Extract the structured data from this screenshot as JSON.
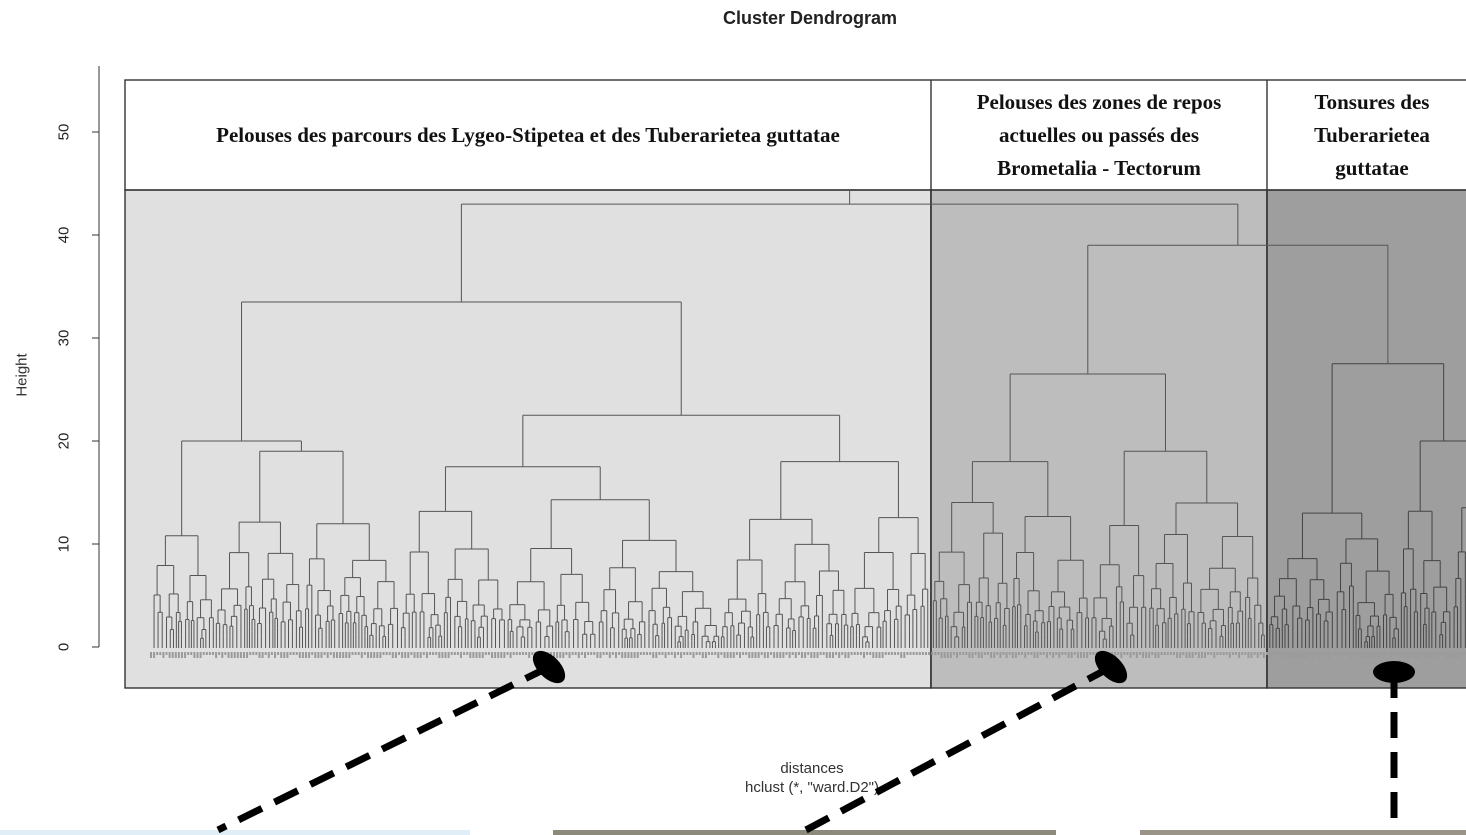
{
  "chart_data": {
    "type": "dendrogram",
    "title": "Cluster Dendrogram",
    "xlabel": "distances",
    "sublabel": "hclust (*, \"ward.D2\")",
    "ylabel": "Height",
    "ylim": [
      0,
      55
    ],
    "yticks": [
      "0",
      "10",
      "20",
      "30",
      "40",
      "50"
    ],
    "clusters": [
      {
        "label_lines": [
          "Pelouses des parcours des Lygeo-Stipetea et des Tuberarietea  guttatae"
        ],
        "shade": "#e0e0e0"
      },
      {
        "label_lines": [
          "Pelouses des zones de repos",
          "actuelles ou passés des",
          "Brometalia - Tectorum"
        ],
        "shade": "#bdbdbd"
      },
      {
        "label_lines": [
          "Tonsures des",
          "Tuberarietea",
          "guttatae"
        ],
        "shade": "#9e9e9e"
      }
    ],
    "merges": [
      {
        "height": 43,
        "joins": [
          "cluster 1",
          "cluster 2+3"
        ]
      },
      {
        "height": 39,
        "joins": [
          "cluster 2",
          "cluster 3"
        ]
      },
      {
        "height": 33.5,
        "joins": [
          "cluster 1 left",
          "cluster 1 right"
        ]
      },
      {
        "height": 27.5,
        "joins": [
          "cluster 3 left",
          "cluster 3 right"
        ]
      },
      {
        "height": 26.5,
        "joins": [
          "cluster 2 left",
          "cluster 2 right"
        ]
      },
      {
        "height": 22.5,
        "joins": [
          "cluster 1 right-a",
          "cluster 1 right-b"
        ]
      },
      {
        "height": 20,
        "joins": [
          "cluster 1 left-a",
          "cluster 1 left-b"
        ]
      },
      {
        "height": 19,
        "joins": [
          "cluster 2 right-a",
          "cluster 2 right-b"
        ]
      },
      {
        "height": 18,
        "joins": [
          "cluster 2 left-a",
          "cluster 2 left-b"
        ]
      },
      {
        "height": 17.5,
        "joins": [
          "cluster 1 right-a-1",
          "cluster 1 right-a-2"
        ]
      }
    ]
  },
  "colors": {
    "frame": "#333333",
    "tree": "#555555",
    "dashed_pointer": "#000000"
  }
}
